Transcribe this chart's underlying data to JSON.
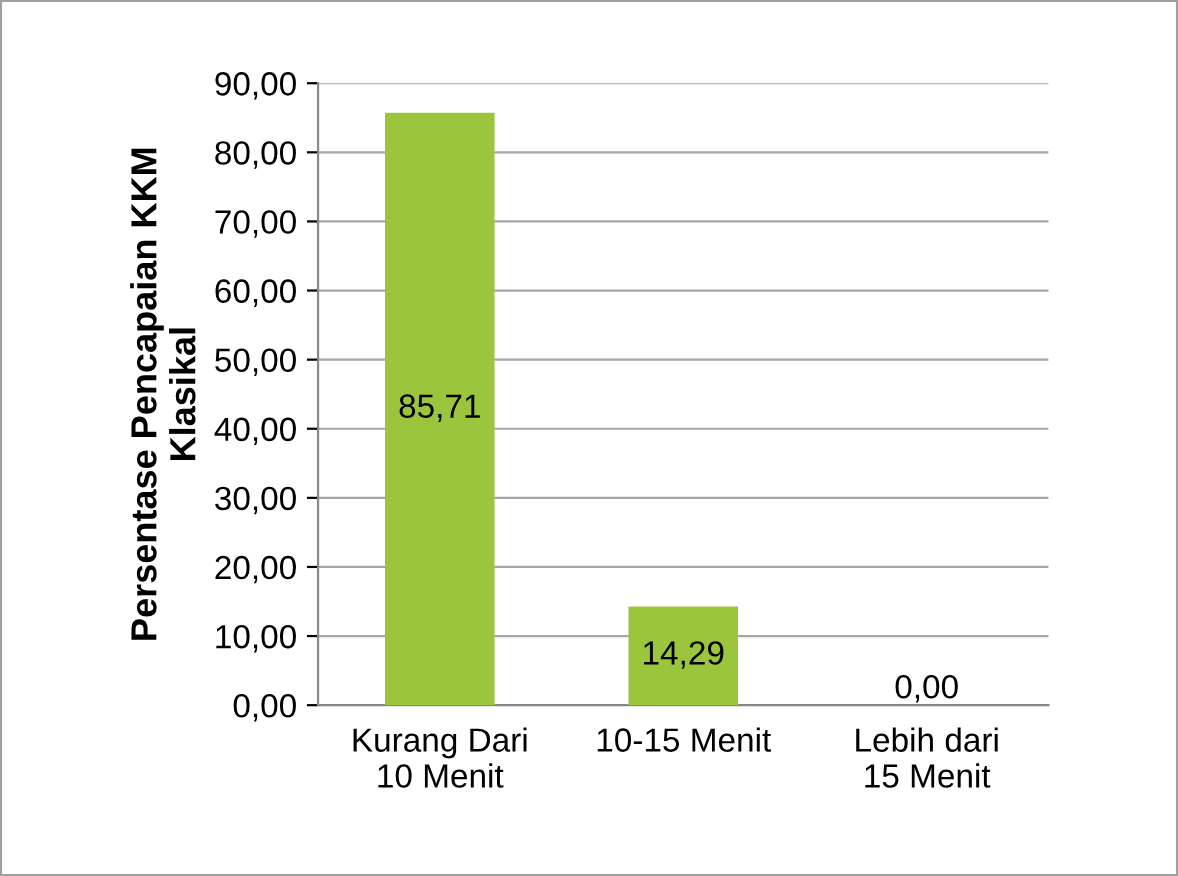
{
  "chart_data": {
    "type": "bar",
    "ylabel": "Persentase Pencapaian KKM\nKlasikal",
    "categories": [
      "Kurang Dari\n10 Menit",
      "10-15 Menit",
      "Lebih dari\n15 Menit"
    ],
    "values": [
      85.71,
      14.29,
      0.0
    ],
    "value_labels": [
      "85,71",
      "14,29",
      "0,00"
    ],
    "color": "#9bc53d",
    "ylim": [
      0,
      90
    ],
    "yticks": [
      {
        "value": 0,
        "label": "0,00"
      },
      {
        "value": 10,
        "label": "10,00"
      },
      {
        "value": 20,
        "label": "20,00"
      },
      {
        "value": 30,
        "label": "30,00"
      },
      {
        "value": 40,
        "label": "40,00"
      },
      {
        "value": 50,
        "label": "50,00"
      },
      {
        "value": 60,
        "label": "60,00"
      },
      {
        "value": 70,
        "label": "70,00"
      },
      {
        "value": 80,
        "label": "80,00"
      },
      {
        "value": 90,
        "label": "90,00"
      }
    ],
    "grid": "y"
  }
}
